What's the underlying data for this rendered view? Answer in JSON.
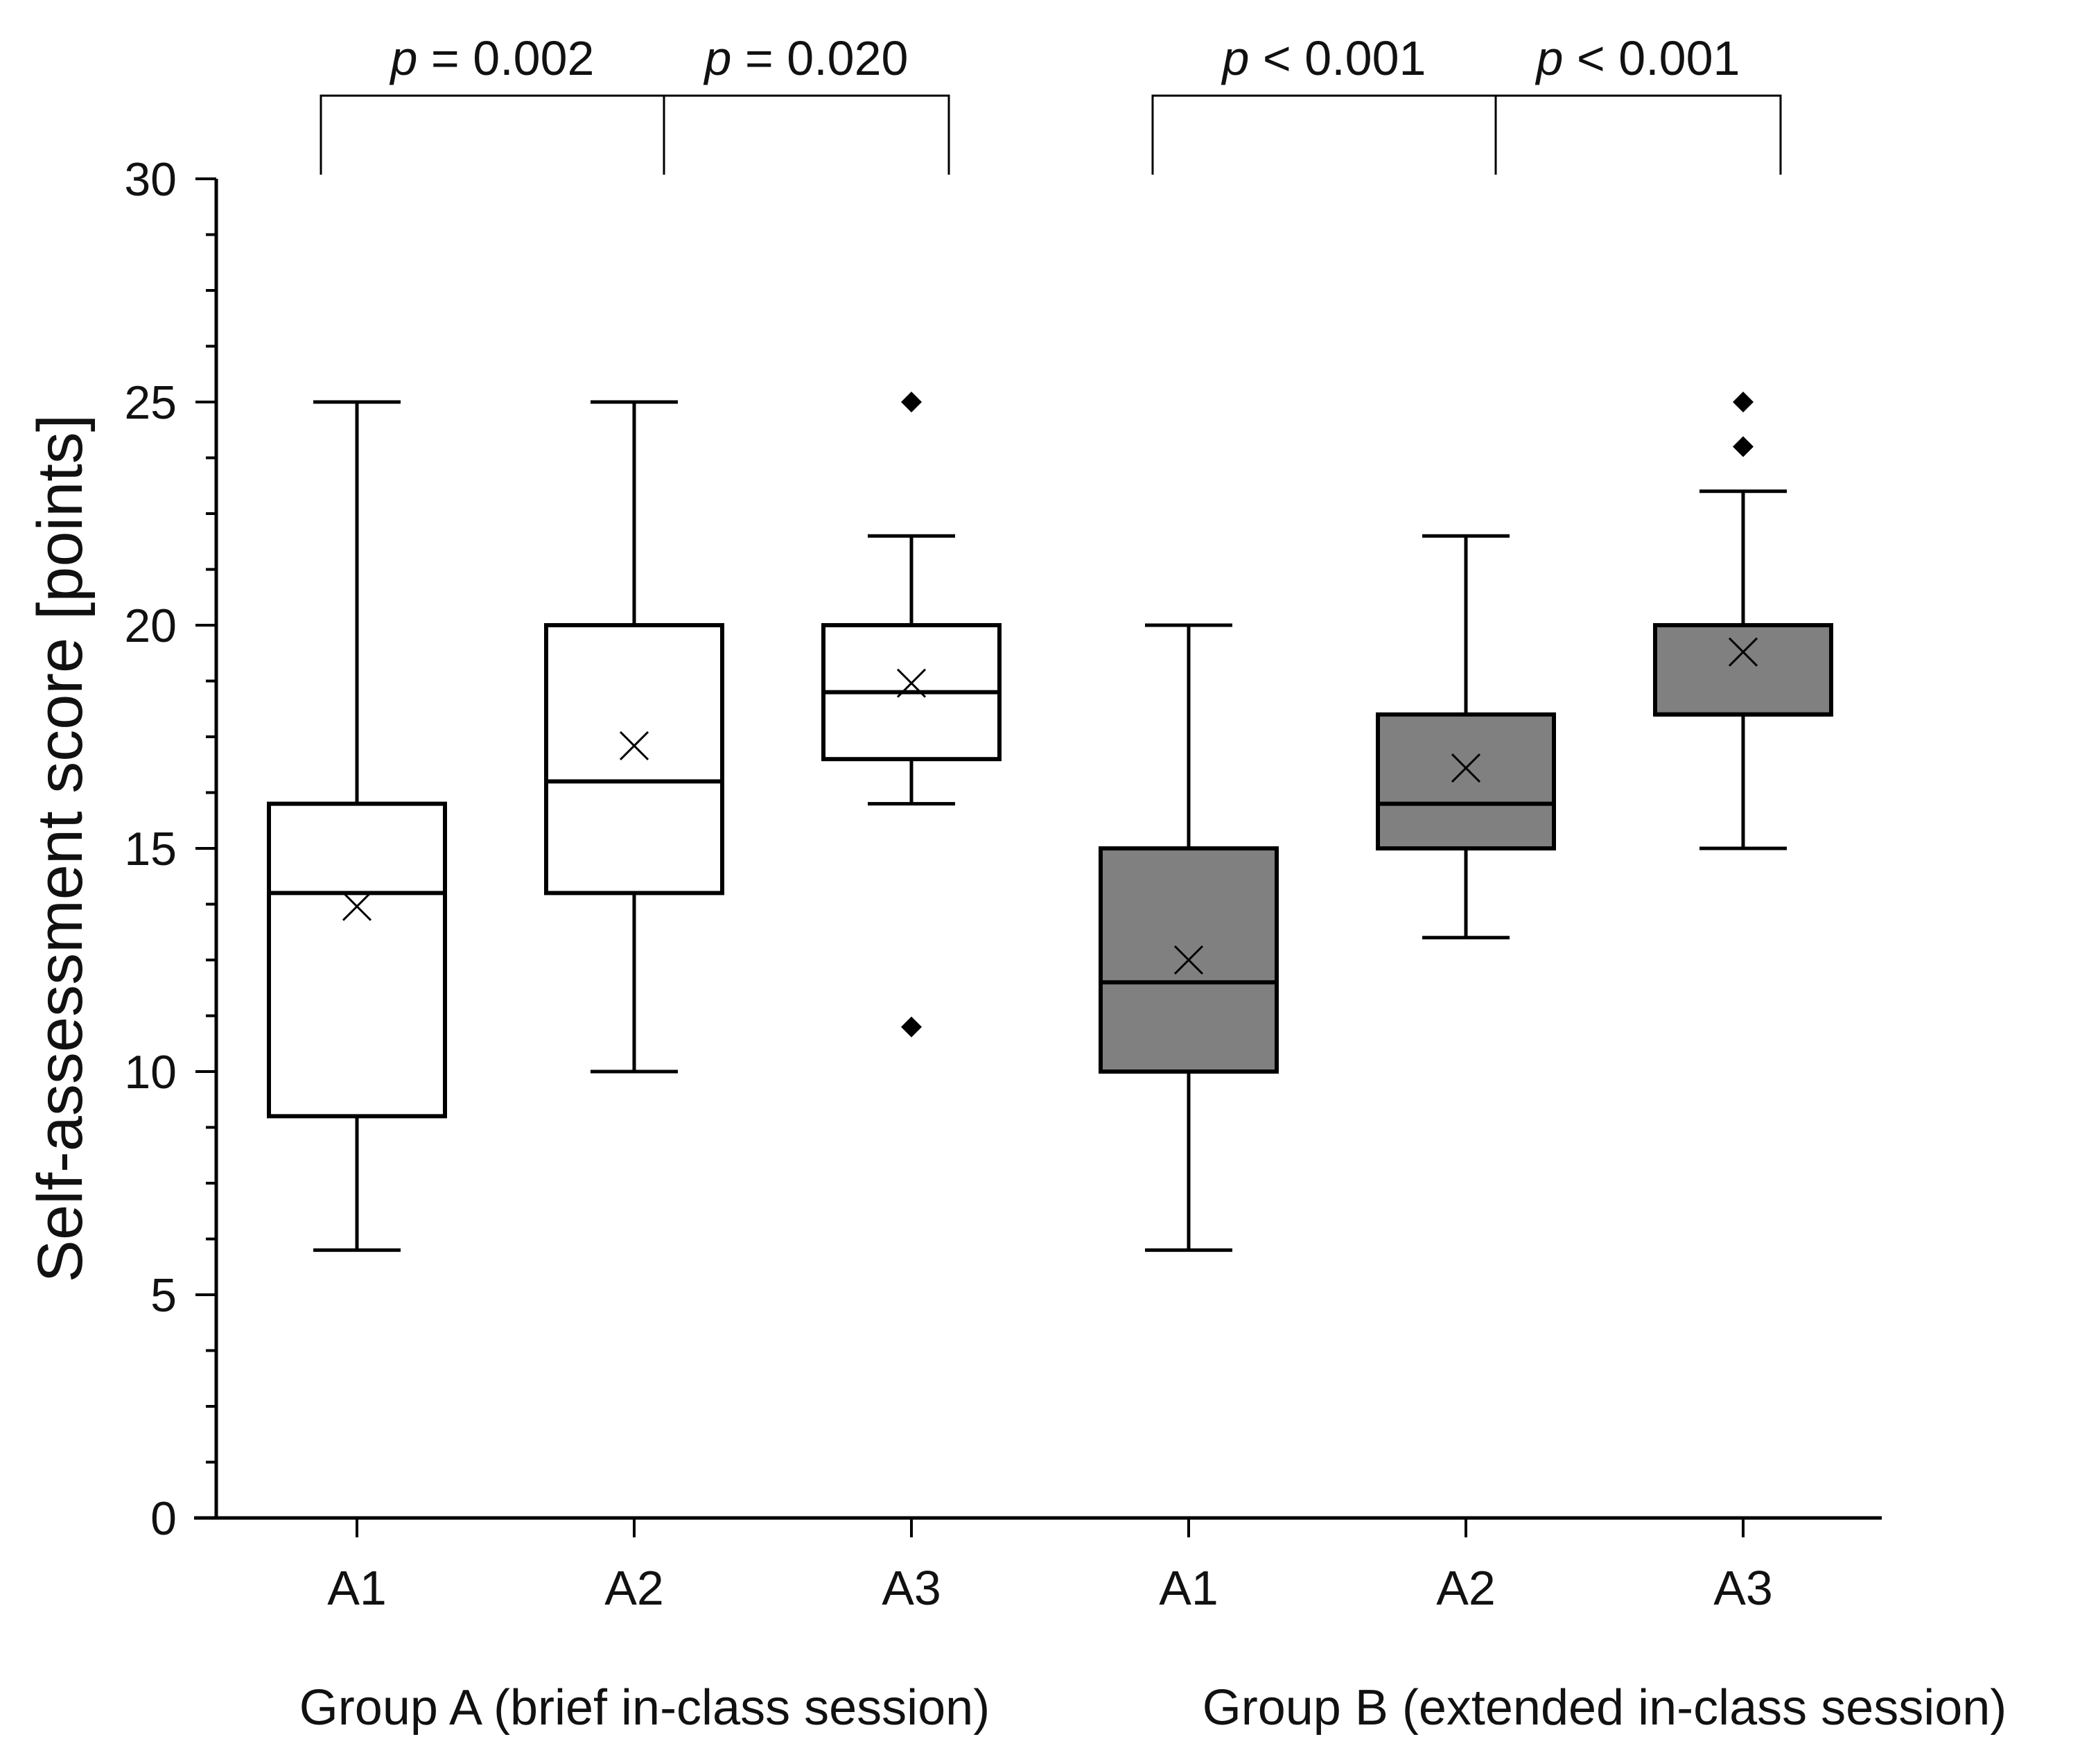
{
  "chart_data": {
    "type": "box",
    "ylabel": "Self-assessment score [points]",
    "ylim": [
      0,
      30
    ],
    "yticks": [
      0,
      5,
      10,
      15,
      20,
      25,
      30
    ],
    "groups": [
      {
        "name": "Group A (brief in-class session)",
        "fill": "#ffffff",
        "boxes": [
          {
            "label": "A1",
            "min": 6,
            "q1": 9,
            "median": 14,
            "q3": 16,
            "max": 25,
            "mean": 13.7,
            "outliers": []
          },
          {
            "label": "A2",
            "min": 10,
            "q1": 14,
            "median": 16.5,
            "q3": 20,
            "max": 25,
            "mean": 17.3,
            "outliers": []
          },
          {
            "label": "A3",
            "min": 16,
            "q1": 17,
            "median": 18.5,
            "q3": 20,
            "max": 22,
            "mean": 18.7,
            "outliers": [
              25,
              11
            ]
          }
        ]
      },
      {
        "name": "Group B (extended in-class session)",
        "fill": "#808080",
        "boxes": [
          {
            "label": "A1",
            "min": 6,
            "q1": 10,
            "median": 12,
            "q3": 15,
            "max": 20,
            "mean": 12.5,
            "outliers": []
          },
          {
            "label": "A2",
            "min": 13,
            "q1": 15,
            "median": 16,
            "q3": 18,
            "max": 22,
            "mean": 16.8,
            "outliers": []
          },
          {
            "label": "A3",
            "min": 15,
            "q1": 18,
            "median": 18,
            "q3": 20,
            "max": 23,
            "mean": 19.4,
            "outliers": [
              25,
              24
            ]
          }
        ]
      }
    ],
    "comparisons": [
      {
        "from": 0,
        "to": 1,
        "p": "p",
        "rest": " = 0.002"
      },
      {
        "from": 1,
        "to": 2,
        "p": "p",
        "rest": " = 0.020"
      },
      {
        "from": 3,
        "to": 4,
        "p": "p",
        "rest": " < 0.001"
      },
      {
        "from": 4,
        "to": 5,
        "p": "p",
        "rest": " < 0.001"
      }
    ]
  }
}
